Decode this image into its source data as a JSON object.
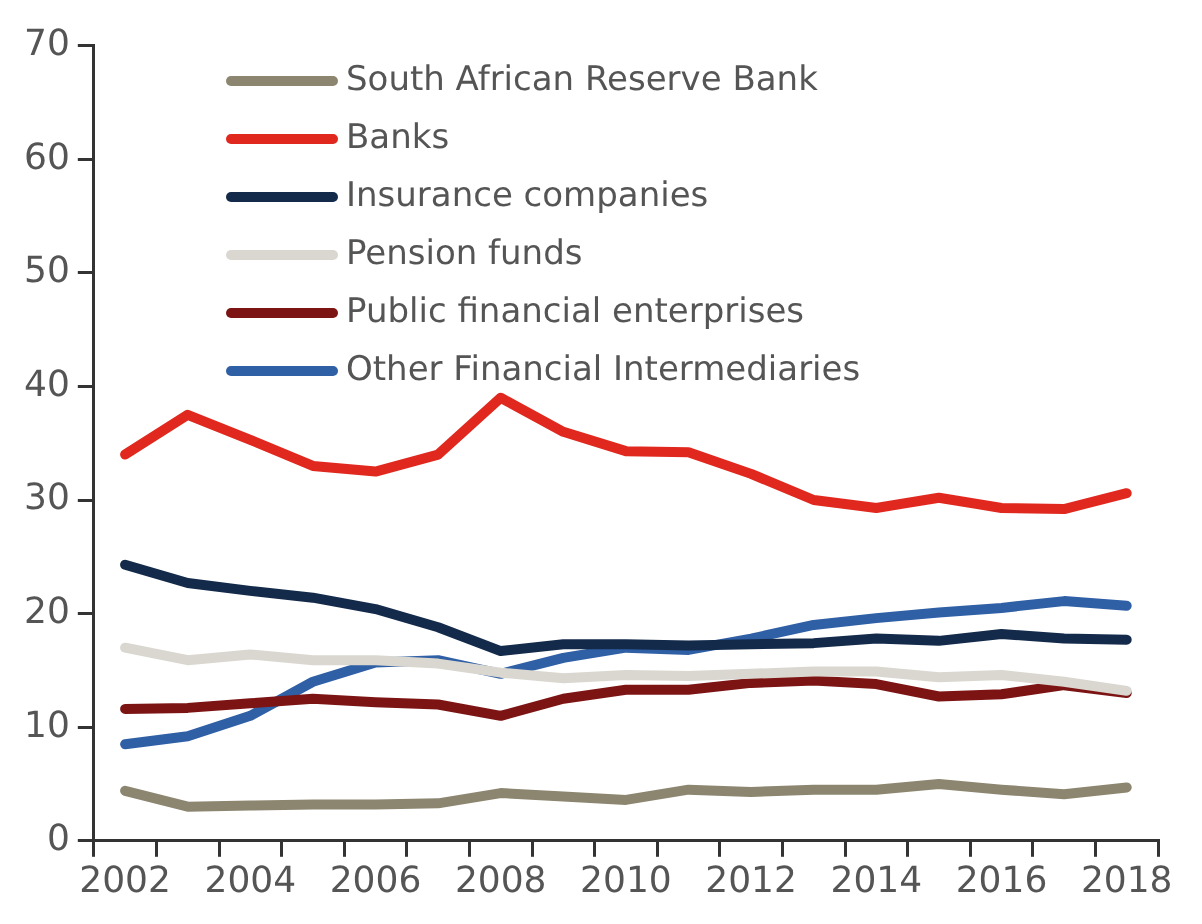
{
  "chart_data": {
    "type": "line",
    "categories": [
      "2002",
      null,
      "2004",
      null,
      "2006",
      null,
      "2008",
      null,
      "2010",
      null,
      "2012",
      null,
      "2014",
      null,
      "2016",
      null,
      "2018"
    ],
    "series": [
      {
        "name": "South African Reserve Bank",
        "color": "#8c8670",
        "values": [
          4.4,
          3.0,
          3.1,
          3.2,
          3.2,
          3.3,
          4.2,
          3.9,
          3.6,
          4.5,
          4.3,
          4.5,
          4.5,
          5.0,
          4.5,
          4.1,
          4.7
        ]
      },
      {
        "name": "Banks",
        "color": "#e0281e",
        "values": [
          34,
          37.5,
          35.3,
          33,
          32.5,
          34,
          39,
          36,
          34.3,
          34.2,
          32.3,
          30,
          29.3,
          30.2,
          29.3,
          29.2,
          30.6
        ]
      },
      {
        "name": "Insurance companies",
        "color": "#132a4a",
        "values": [
          24.3,
          22.7,
          22,
          21.4,
          20.4,
          18.8,
          16.7,
          17.3,
          17.3,
          17.2,
          17.3,
          17.4,
          17.8,
          17.6,
          18.2,
          17.8,
          17.7
        ]
      },
      {
        "name": "Pension funds",
        "color": "#d9d7d0",
        "values": [
          17,
          15.9,
          16.4,
          15.9,
          15.9,
          15.6,
          14.8,
          14.3,
          14.6,
          14.5,
          14.7,
          14.9,
          14.9,
          14.4,
          14.6,
          14.0,
          13.2
        ]
      },
      {
        "name": "Public financial enterprises",
        "color": "#7d1414",
        "values": [
          11.6,
          11.7,
          12.1,
          12.5,
          12.2,
          12,
          11,
          12.5,
          13.3,
          13.3,
          13.9,
          14.1,
          13.8,
          12.7,
          12.9,
          13.7,
          13.0
        ]
      },
      {
        "name": "Other Financial Intermediaries",
        "color": "#2f5fa5",
        "values": [
          8.5,
          9.2,
          11,
          14,
          15.7,
          15.9,
          14.7,
          16.1,
          17,
          16.8,
          17.8,
          19,
          19.6,
          20.1,
          20.5,
          21.1,
          20.7
        ]
      }
    ],
    "ylim": [
      0,
      70
    ],
    "yticks": [
      0,
      10,
      20,
      30,
      40,
      50,
      60,
      70
    ],
    "grid": false,
    "legend": "top left",
    "marker": "none",
    "line_style": "solid"
  }
}
